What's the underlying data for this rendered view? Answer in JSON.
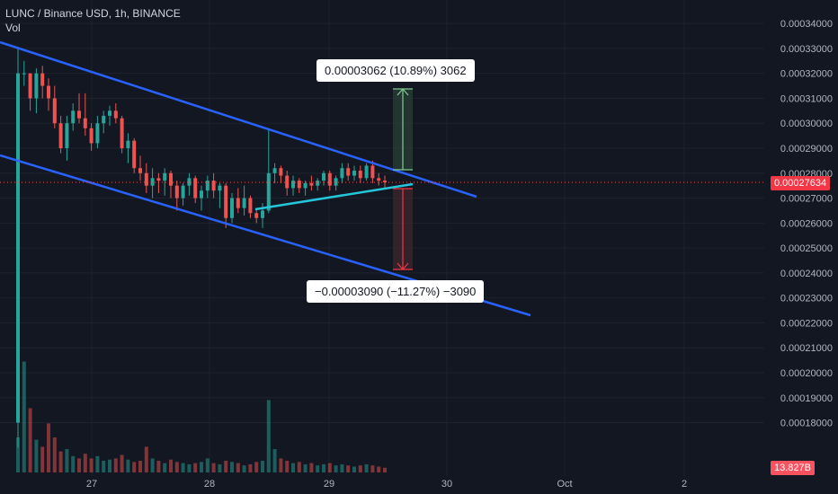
{
  "header": {
    "symbol_line": "LUNC / Binance USD, 1h, BINANCE",
    "volume_label": "Vol"
  },
  "badges": {
    "price": "0.00027634",
    "volume": "13.827B"
  },
  "measurements": {
    "up_label": "0.00003062 (10.89%) 3062",
    "down_label": "−0.00003090 (−11.27%) −3090"
  },
  "colors": {
    "background": "#131722",
    "up": "#26a69a",
    "down": "#ef5350",
    "channel": "#2962ff",
    "trend": "#22ab94",
    "grid": "#1e222d"
  },
  "chart_data": {
    "type": "candlestick",
    "title": "LUNC / Binance USD, 1h, BINANCE",
    "ylim": [
      0.000173,
      0.000344
    ],
    "y_ticks": [
      "0.00034000",
      "0.00033000",
      "0.00032000",
      "0.00031000",
      "0.00030000",
      "0.00029000",
      "0.00028000",
      "0.00027000",
      "0.00026000",
      "0.00025000",
      "0.00024000",
      "0.00023000",
      "0.00022000",
      "0.00021000",
      "0.00020000",
      "0.00019000",
      "0.00018000"
    ],
    "x_ticks": [
      "27",
      "28",
      "29",
      "30",
      "Oct",
      "2"
    ],
    "last_price": 0.00027634,
    "last_volume": "13.827B",
    "candles": [
      [
        0.00018,
        0.00033,
        0.00017,
        0.00032
      ],
      [
        0.00032,
        0.000325,
        0.000315,
        0.00032
      ],
      [
        0.00032,
        0.00032,
        0.000305,
        0.00031
      ],
      [
        0.00031,
        0.000322,
        0.000304,
        0.00032
      ],
      [
        0.00032,
        0.000323,
        0.00031,
        0.000315
      ],
      [
        0.000315,
        0.000318,
        0.000305,
        0.00031
      ],
      [
        0.00031,
        0.000315,
        0.000298,
        0.0003
      ],
      [
        0.0003,
        0.000303,
        0.000288,
        0.00029
      ],
      [
        0.00029,
        0.000303,
        0.000285,
        0.0003
      ],
      [
        0.0003,
        0.000308,
        0.000297,
        0.000305
      ],
      [
        0.000305,
        0.000312,
        0.0003,
        0.000302
      ],
      [
        0.000302,
        0.000312,
        0.000295,
        0.000298
      ],
      [
        0.000298,
        0.0003,
        0.000289,
        0.000292
      ],
      [
        0.000292,
        0.000303,
        0.00029,
        0.0003
      ],
      [
        0.0003,
        0.000305,
        0.000296,
        0.000303
      ],
      [
        0.000303,
        0.000307,
        0.000299,
        0.000305
      ],
      [
        0.000305,
        0.000308,
        0.0003,
        0.000302
      ],
      [
        0.000302,
        0.000303,
        0.000288,
        0.00029
      ],
      [
        0.00029,
        0.000296,
        0.000284,
        0.000293
      ],
      [
        0.000293,
        0.000294,
        0.00028,
        0.000282
      ],
      [
        0.000282,
        0.000287,
        0.000277,
        0.00028
      ],
      [
        0.00028,
        0.000284,
        0.000272,
        0.000275
      ],
      [
        0.000275,
        0.000282,
        0.00027,
        0.000278
      ],
      [
        0.000278,
        0.00028,
        0.000272,
        0.000277
      ],
      [
        0.000277,
        0.000282,
        0.000271,
        0.00028
      ],
      [
        0.00028,
        0.000281,
        0.00027,
        0.000275
      ],
      [
        0.000275,
        0.000277,
        0.000265,
        0.00027
      ],
      [
        0.00027,
        0.000276,
        0.000267,
        0.000275
      ],
      [
        0.000275,
        0.00028,
        0.000271,
        0.000278
      ],
      [
        0.000278,
        0.000279,
        0.000268,
        0.00027
      ],
      [
        0.00027,
        0.000275,
        0.000265,
        0.000273
      ],
      [
        0.000273,
        0.000279,
        0.00027,
        0.000277
      ],
      [
        0.000277,
        0.00028,
        0.00027,
        0.000273
      ],
      [
        0.000273,
        0.000276,
        0.000266,
        0.000275
      ],
      [
        0.000275,
        0.000276,
        0.000258,
        0.000262
      ],
      [
        0.000262,
        0.000272,
        0.00026,
        0.00027
      ],
      [
        0.00027,
        0.000274,
        0.000264,
        0.000266
      ],
      [
        0.000266,
        0.000275,
        0.000263,
        0.00027
      ],
      [
        0.00027,
        0.000271,
        0.000262,
        0.000264
      ],
      [
        0.000264,
        0.000266,
        0.00026,
        0.000262
      ],
      [
        0.000262,
        0.000268,
        0.000258,
        0.000265
      ],
      [
        0.000265,
        0.000298,
        0.000264,
        0.00028
      ],
      [
        0.00028,
        0.000284,
        0.000276,
        0.000282
      ],
      [
        0.000282,
        0.000283,
        0.000276,
        0.000279
      ],
      [
        0.000279,
        0.000281,
        0.000271,
        0.000274
      ],
      [
        0.000274,
        0.000279,
        0.000271,
        0.000277
      ],
      [
        0.000277,
        0.000278,
        0.000272,
        0.000274
      ],
      [
        0.000274,
        0.000277,
        0.000271,
        0.000276
      ],
      [
        0.000276,
        0.000279,
        0.000273,
        0.000275
      ],
      [
        0.000275,
        0.000278,
        0.000273,
        0.000277
      ],
      [
        0.000277,
        0.000281,
        0.000275,
        0.00028
      ],
      [
        0.00028,
        0.000281,
        0.000273,
        0.000275
      ],
      [
        0.000275,
        0.000279,
        0.000273,
        0.000278
      ],
      [
        0.000278,
        0.000284,
        0.000276,
        0.000282
      ],
      [
        0.000282,
        0.000284,
        0.000277,
        0.000279
      ],
      [
        0.000279,
        0.000283,
        0.000277,
        0.000281
      ],
      [
        0.000281,
        0.000283,
        0.000276,
        0.000278
      ],
      [
        0.000278,
        0.000284,
        0.000277,
        0.000283
      ],
      [
        0.000283,
        0.000285,
        0.000276,
        0.000278
      ],
      [
        0.000278,
        0.00028,
        0.000275,
        0.000277
      ],
      [
        0.000277,
        0.000279,
        0.000274,
        0.00027634
      ]
    ],
    "volumes": [
      0.3,
      0.95,
      0.55,
      0.28,
      0.22,
      0.42,
      0.3,
      0.18,
      0.2,
      0.14,
      0.12,
      0.16,
      0.12,
      0.14,
      0.1,
      0.11,
      0.12,
      0.15,
      0.11,
      0.09,
      0.1,
      0.22,
      0.12,
      0.1,
      0.08,
      0.11,
      0.09,
      0.08,
      0.07,
      0.08,
      0.09,
      0.12,
      0.08,
      0.07,
      0.1,
      0.09,
      0.08,
      0.06,
      0.07,
      0.09,
      0.1,
      0.62,
      0.2,
      0.12,
      0.1,
      0.08,
      0.09,
      0.07,
      0.08,
      0.06,
      0.07,
      0.08,
      0.06,
      0.07,
      0.06,
      0.05,
      0.06,
      0.07,
      0.06,
      0.05,
      0.04
    ]
  }
}
